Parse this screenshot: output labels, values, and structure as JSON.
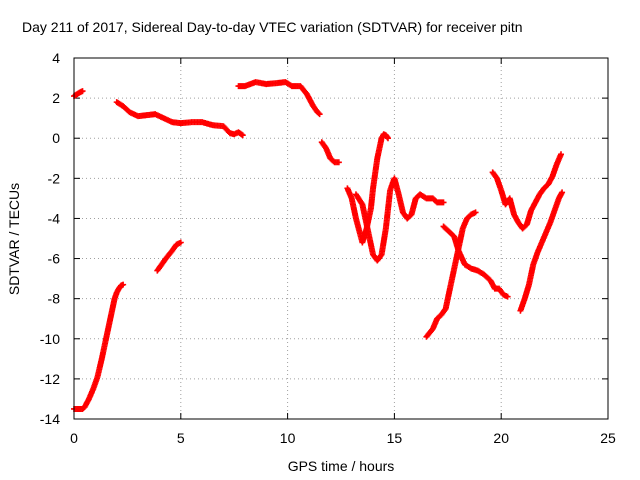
{
  "chart_data": {
    "type": "scatter",
    "title": "Day 211 of 2017, Sidereal Day-to-day VTEC variation (SDTVAR) for receiver pitn",
    "xlabel": "GPS time / hours",
    "ylabel": "SDTVAR / TECUs",
    "xlim": [
      0,
      25
    ],
    "ylim": [
      -14,
      4
    ],
    "xticks": [
      0,
      5,
      10,
      15,
      20,
      25
    ],
    "yticks": [
      -14,
      -12,
      -10,
      -8,
      -6,
      -4,
      -2,
      0,
      2,
      4
    ],
    "xtick_labels": [
      "0",
      "5",
      "10",
      "15",
      "20",
      "25"
    ],
    "ytick_labels": [
      "-14",
      "-12",
      "-10",
      "-8",
      "-6",
      "-4",
      "-2",
      "0",
      "2",
      "4"
    ],
    "grid": true,
    "marker": "plus",
    "color": "#ff0000",
    "segments": [
      {
        "x": [
          0.0,
          0.15,
          0.3,
          0.4
        ],
        "y": [
          2.1,
          2.2,
          2.3,
          2.35
        ]
      },
      {
        "x": [
          0.0,
          0.2,
          0.4,
          0.5,
          0.7,
          0.9,
          1.1,
          1.3,
          1.5,
          1.6,
          1.7,
          1.8,
          1.9,
          2.0,
          2.1,
          2.2,
          2.3
        ],
        "y": [
          -13.5,
          -13.5,
          -13.5,
          -13.4,
          -13.0,
          -12.5,
          -11.9,
          -11.0,
          -10.0,
          -9.5,
          -9.0,
          -8.5,
          -8.0,
          -7.7,
          -7.5,
          -7.35,
          -7.3
        ]
      },
      {
        "x": [
          2.0,
          2.3,
          2.6,
          3.0,
          3.4,
          3.8,
          4.2,
          4.6,
          5.0,
          5.5,
          6.0,
          6.5,
          7.0,
          7.3,
          7.5,
          7.7,
          7.9
        ],
        "y": [
          1.8,
          1.6,
          1.3,
          1.1,
          1.15,
          1.2,
          1.0,
          0.8,
          0.75,
          0.8,
          0.8,
          0.65,
          0.6,
          0.25,
          0.2,
          0.3,
          0.15
        ]
      },
      {
        "x": [
          3.9,
          4.1,
          4.3,
          4.6,
          4.8,
          5.0
        ],
        "y": [
          -6.6,
          -6.3,
          -6.0,
          -5.6,
          -5.3,
          -5.2
        ]
      },
      {
        "x": [
          7.7,
          8.0,
          8.5,
          9.0,
          9.5,
          9.9,
          10.2,
          10.6,
          10.9,
          11.2,
          11.4,
          11.5
        ],
        "y": [
          2.6,
          2.6,
          2.8,
          2.7,
          2.75,
          2.8,
          2.6,
          2.6,
          2.2,
          1.6,
          1.3,
          1.2
        ]
      },
      {
        "x": [
          11.6,
          11.8,
          12.0,
          12.2,
          12.4
        ],
        "y": [
          -0.2,
          -0.5,
          -1.0,
          -1.2,
          -1.2
        ]
      },
      {
        "x": [
          12.8,
          13.0,
          13.2,
          13.5,
          13.7,
          13.9,
          14.0,
          14.2,
          14.4,
          14.5,
          14.6,
          14.7
        ],
        "y": [
          -2.5,
          -3.0,
          -4.0,
          -5.2,
          -4.5,
          -3.5,
          -2.5,
          -1.0,
          0.0,
          0.2,
          0.15,
          0.0
        ]
      },
      {
        "x": [
          13.2,
          13.5,
          13.8,
          14.0,
          14.2,
          14.4,
          14.6,
          14.8,
          15.0,
          15.2,
          15.4,
          15.6,
          15.8,
          16.0,
          16.2,
          16.5,
          16.8,
          17.0,
          17.3
        ],
        "y": [
          -2.8,
          -3.3,
          -4.8,
          -5.8,
          -6.1,
          -5.8,
          -4.5,
          -2.6,
          -2.0,
          -2.8,
          -3.7,
          -4.0,
          -3.8,
          -3.0,
          -2.8,
          -3.0,
          -3.0,
          -3.2,
          -3.2
        ]
      },
      {
        "x": [
          17.3,
          17.5,
          17.8,
          18.0,
          18.3,
          18.6,
          18.9,
          19.2,
          19.5,
          19.7,
          19.9,
          20.1,
          20.3
        ],
        "y": [
          -4.4,
          -4.6,
          -4.9,
          -5.6,
          -6.3,
          -6.5,
          -6.6,
          -6.8,
          -7.1,
          -7.5,
          -7.5,
          -7.8,
          -7.9
        ]
      },
      {
        "x": [
          16.5,
          16.8,
          17.0,
          17.2,
          17.4,
          17.6,
          17.8,
          18.0,
          18.2,
          18.4,
          18.6,
          18.8
        ],
        "y": [
          -9.9,
          -9.5,
          -9.0,
          -8.8,
          -8.5,
          -7.5,
          -6.5,
          -5.5,
          -4.5,
          -4.0,
          -3.8,
          -3.7
        ]
      },
      {
        "x": [
          19.6,
          19.8,
          20.0,
          20.2,
          20.4,
          20.6,
          20.8,
          21.0,
          21.2,
          21.4,
          21.6,
          21.8,
          22.0,
          22.2,
          22.4,
          22.6,
          22.8
        ],
        "y": [
          -1.7,
          -2.0,
          -2.6,
          -3.3,
          -3.0,
          -3.8,
          -4.2,
          -4.5,
          -4.3,
          -3.6,
          -3.2,
          -2.8,
          -2.5,
          -2.3,
          -1.9,
          -1.3,
          -0.8
        ]
      },
      {
        "x": [
          20.9,
          21.1,
          21.3,
          21.5,
          21.7,
          21.9,
          22.1,
          22.3,
          22.5,
          22.7,
          22.85
        ],
        "y": [
          -8.6,
          -8.0,
          -7.3,
          -6.3,
          -5.7,
          -5.2,
          -4.7,
          -4.2,
          -3.6,
          -3.0,
          -2.7
        ]
      }
    ]
  }
}
